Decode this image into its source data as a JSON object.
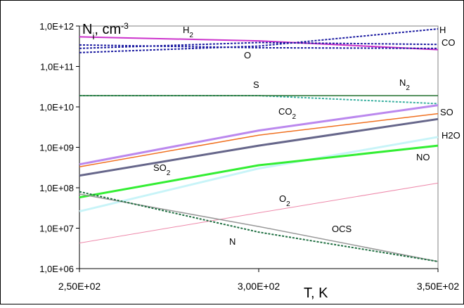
{
  "chart_data": {
    "type": "line",
    "y_axis_title": "N_i, cm^-3",
    "x_axis_title": "T, K",
    "x_ticks": [
      "2,50E+02",
      "3,00E+02",
      "3,50E+02"
    ],
    "y_ticks": [
      "1,0E+06",
      "1,0E+07",
      "1,0E+08",
      "1,0E+09",
      "1,0E+10",
      "1,0E+11",
      "1,0E+12"
    ],
    "x_values": [
      250,
      300,
      350
    ],
    "xlim": [
      250,
      350
    ],
    "ylim": [
      1000000.0,
      1000000000000.0
    ],
    "yscale": "log",
    "grid": false,
    "legend": "none",
    "series": [
      {
        "name": "H",
        "values": [
          220000000000.0,
          320000000000.0,
          850000000000.0
        ],
        "color": "#1a1aa0",
        "style": "dotted",
        "width": 2
      },
      {
        "name": "H2",
        "values": [
          540000000000.0,
          430000000000.0,
          260000000000.0
        ],
        "color": "#cc33cc",
        "style": "solid",
        "width": 2
      },
      {
        "name": "CO",
        "values": [
          340000000000.0,
          290000000000.0,
          280000000000.0
        ],
        "color": "#1a1aa0",
        "style": "dotted",
        "width": 2
      },
      {
        "name": "O",
        "values": [
          280000000000.0,
          390000000000.0,
          350000000000.0
        ],
        "color": "#1a1aa0",
        "style": "dotted",
        "width": 2
      },
      {
        "name": "S",
        "values": [
          19000000000.0,
          19000000000.0,
          12000000000.0
        ],
        "color": "#3ab0a0",
        "style": "dotted",
        "width": 2
      },
      {
        "name": "N2",
        "values": [
          19000000000.0,
          19000000000.0,
          19000000000.0
        ],
        "color": "#1e6e2a",
        "style": "solid",
        "width": 1.5
      },
      {
        "name": "CO2",
        "values": [
          380000000.0,
          2600000000.0,
          11000000000.0
        ],
        "color": "#bb88ee",
        "style": "solid",
        "width": 3
      },
      {
        "name": "SO",
        "values": [
          330000000.0,
          2000000000.0,
          6800000000.0
        ],
        "color": "#f07020",
        "style": "solid",
        "width": 1.5
      },
      {
        "name": "SO2",
        "values": [
          200000000.0,
          1100000000.0,
          5000000000.0
        ],
        "color": "#66668a",
        "style": "solid",
        "width": 3
      },
      {
        "name": "H2O",
        "values": [
          26000000.0,
          300000000.0,
          1800000000.0
        ],
        "color": "#c8f4f8",
        "style": "solid",
        "width": 3
      },
      {
        "name": "NO",
        "values": [
          58000000.0,
          360000000.0,
          1100000000.0
        ],
        "color": "#33ee33",
        "style": "solid",
        "width": 3
      },
      {
        "name": "O2",
        "values": [
          4300000.0,
          24000000.0,
          130000000.0
        ],
        "color": "#ee88aa",
        "style": "solid",
        "width": 1
      },
      {
        "name": "OCS",
        "values": [
          70000000.0,
          11000000.0,
          1500000.0
        ],
        "color": "#999999",
        "style": "solid",
        "width": 1.5
      },
      {
        "name": "N",
        "values": [
          80000000.0,
          8000000.0,
          1500000.0
        ],
        "color": "#1e6e40",
        "style": "dotted",
        "width": 2
      }
    ]
  }
}
